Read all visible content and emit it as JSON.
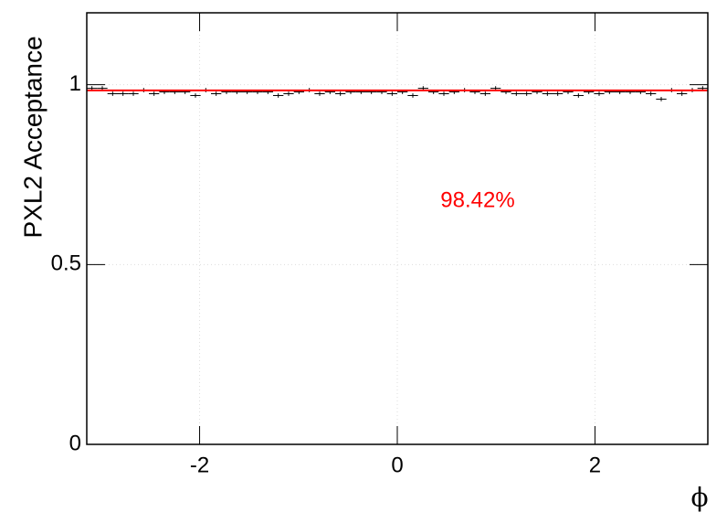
{
  "chart_data": {
    "type": "histogram",
    "xlabel": "ϕ",
    "ylabel": "PXL2 Acceptance",
    "annotation": "98.42%",
    "fit": {
      "value": 0.9842,
      "label": "98.42%"
    },
    "fit_color": "#ff0000",
    "color": "#000000",
    "bins": [
      -3.1416,
      -3.0369,
      -2.9322,
      -2.8274,
      -2.7227,
      -2.618,
      -2.5133,
      -2.4086,
      -2.3038,
      -2.1991,
      -2.0944,
      -1.9897,
      -1.885,
      -1.7802,
      -1.6755,
      -1.5708,
      -1.4661,
      -1.3614,
      -1.2566,
      -1.1519,
      -1.0472,
      -0.9425,
      -0.8378,
      -0.733,
      -0.6283,
      -0.5236,
      -0.4189,
      -0.3142,
      -0.2094,
      -0.1047,
      0,
      0.1047,
      0.2094,
      0.3142,
      0.4189,
      0.5236,
      0.6283,
      0.733,
      0.8378,
      0.9425,
      1.0472,
      1.1519,
      1.2566,
      1.3614,
      1.4661,
      1.5708,
      1.6755,
      1.7802,
      1.885,
      1.9897,
      2.0944,
      2.1991,
      2.3038,
      2.4086,
      2.5133,
      2.618,
      2.7227,
      2.8274,
      2.9322,
      3.0369,
      3.1416
    ],
    "values": [
      0.99,
      0.99,
      0.975,
      0.975,
      0.975,
      0.985,
      0.975,
      0.98,
      0.98,
      0.98,
      0.97,
      0.985,
      0.975,
      0.98,
      0.98,
      0.98,
      0.98,
      0.98,
      0.97,
      0.975,
      0.98,
      0.985,
      0.975,
      0.98,
      0.975,
      0.98,
      0.98,
      0.98,
      0.98,
      0.975,
      0.98,
      0.97,
      0.99,
      0.98,
      0.975,
      0.98,
      0.985,
      0.98,
      0.975,
      0.99,
      0.98,
      0.975,
      0.975,
      0.98,
      0.975,
      0.975,
      0.98,
      0.97,
      0.98,
      0.975,
      0.98,
      0.98,
      0.98,
      0.98,
      0.975,
      0.96,
      0.985,
      0.975,
      0.985,
      0.99
    ],
    "errors": [
      0.006,
      0.006,
      0.006,
      0.006,
      0.006,
      0.006,
      0.006,
      0.006,
      0.006,
      0.006,
      0.006,
      0.006,
      0.006,
      0.006,
      0.006,
      0.006,
      0.006,
      0.006,
      0.006,
      0.006,
      0.006,
      0.006,
      0.006,
      0.006,
      0.006,
      0.006,
      0.006,
      0.006,
      0.006,
      0.006,
      0.006,
      0.006,
      0.006,
      0.006,
      0.006,
      0.006,
      0.006,
      0.006,
      0.006,
      0.006,
      0.006,
      0.006,
      0.006,
      0.006,
      0.006,
      0.006,
      0.006,
      0.006,
      0.006,
      0.006,
      0.006,
      0.006,
      0.006,
      0.006,
      0.006,
      0.006,
      0.006,
      0.006,
      0.006,
      0.006
    ],
    "xlim": [
      -3.1416,
      3.1416
    ],
    "ylim": [
      0,
      1.2
    ],
    "xticks": [
      -2,
      0,
      2
    ],
    "yticks": [
      0,
      0.5,
      1
    ],
    "grid": true
  }
}
